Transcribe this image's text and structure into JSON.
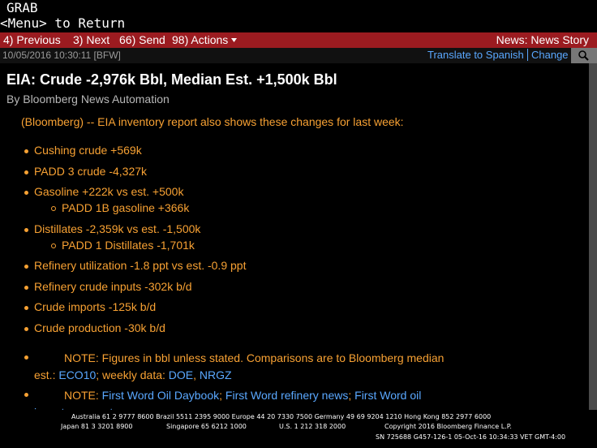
{
  "top": {
    "line1": "GRAB",
    "line2": "<Menu> to Return"
  },
  "toolbar": {
    "buttons": [
      "4) Previous",
      "3) Next",
      "66) Send",
      "98) Actions"
    ],
    "right": "News: News Story"
  },
  "status": {
    "timestamp": "10/05/2016 10:30:11 [BFW]",
    "translate": "Translate to Spanish",
    "change": "Change"
  },
  "story": {
    "headline": "EIA: Crude -2,976k Bbl, Median Est. +1,500k Bbl",
    "byline": "By Bloomberg News Automation",
    "intro": "(Bloomberg) -- EIA inventory report also shows these changes for last week:",
    "items": [
      {
        "text": "Cushing crude +569k"
      },
      {
        "text": "PADD 3 crude -4,327k"
      },
      {
        "text": "Gasoline +222k vs est. +500k",
        "sub": [
          "PADD 1B gasoline +366k"
        ]
      },
      {
        "text": "Distillates -2,359k vs est. -1,500k",
        "sub": [
          "PADD 1 Distillates -1,701k"
        ]
      },
      {
        "text": "Refinery utilization -1.8 ppt vs est. -0.9 ppt"
      },
      {
        "text": "Refinery crude inputs -302k b/d"
      },
      {
        "text": "Crude imports -125k b/d"
      },
      {
        "text": "Crude production -30k b/d"
      }
    ],
    "notes": [
      [
        {
          "text": "NOTE: Figures in bbl unless stated. Comparisons are to Bloomberg median est.: ",
          "link": false
        },
        {
          "text": "ECO10",
          "link": true
        },
        {
          "text": "; weekly data: ",
          "link": false
        },
        {
          "text": "DOE",
          "link": true
        },
        {
          "text": ", ",
          "link": false
        },
        {
          "text": "NRGZ",
          "link": true
        }
      ],
      [
        {
          "text": "NOTE: ",
          "link": false
        },
        {
          "text": "First Word Oil Daybook",
          "link": true
        },
        {
          "text": "; ",
          "link": false
        },
        {
          "text": "First Word refinery news",
          "link": true
        },
        {
          "text": "; ",
          "link": false
        },
        {
          "text": "First Word oil inventory reports",
          "link": true
        }
      ]
    ]
  },
  "footer": {
    "line1": "Australia 61 2 9777 8600 Brazil 5511 2395 9000 Europe 44 20 7330 7500 Germany 49 69 9204 1210 Hong Kong 852 2977 6000",
    "line2a": "Japan 81 3 3201 8900",
    "line2b": "Singapore 65 6212 1000",
    "line2c": "U.S. 1 212 318 2000",
    "line2d": "Copyright 2016 Bloomberg Finance L.P.",
    "line3": "SN 725688 G457-126-1 05-Oct-16 10:34:33 VET   GMT-4:00"
  }
}
